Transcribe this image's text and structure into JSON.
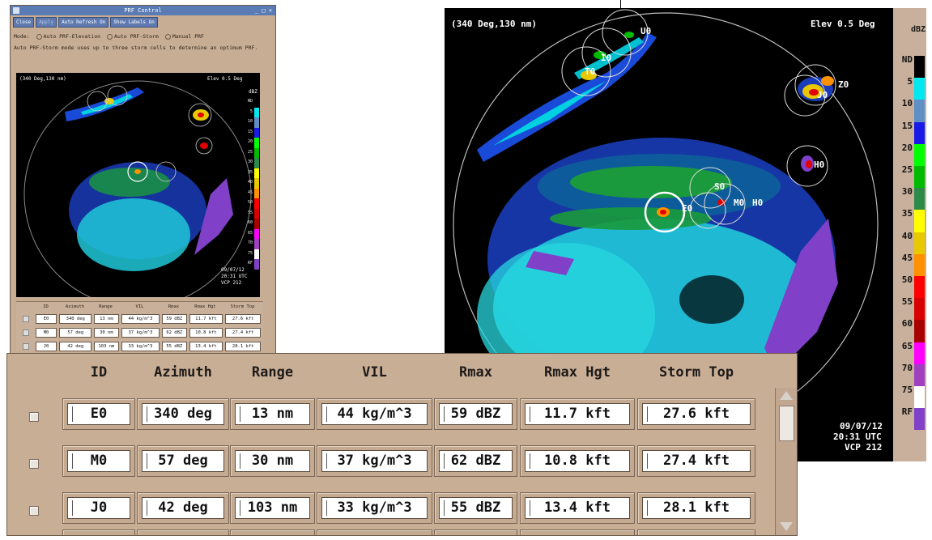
{
  "small_window": {
    "title": "PRF Control",
    "toolbar": {
      "close": "Close",
      "apply": "Apply",
      "auto_refresh": "Auto Refresh  On",
      "show_labels": "Show Labels  On"
    },
    "mode": {
      "label": "Mode:",
      "options": [
        "Auto PRF-Elevation",
        "Auto PRF-Storm",
        "Manual PRF"
      ]
    },
    "description": "Auto PRF-Storm mode uses up to three storm cells to determine an optimum PRF.",
    "radar": {
      "position_label": "(340 Deg,130 nm)",
      "elevation_label": "Elev 0.5 Deg",
      "legend_title": "dBZ",
      "date": "09/07/12",
      "time": "20:31 UTC",
      "vcp": "VCP 212"
    },
    "table": {
      "headers": [
        "ID",
        "Azimuth",
        "Range",
        "VIL",
        "Rmax",
        "Rmax Hgt",
        "Storm Top"
      ],
      "rows": [
        [
          "E0",
          "340 deg",
          "13 nm",
          "44 kg/m^3",
          "59 dBZ",
          "11.7 kft",
          "27.6 kft"
        ],
        [
          "M0",
          "57 deg",
          "30 nm",
          "37 kg/m^3",
          "62 dBZ",
          "10.8 kft",
          "27.4 kft"
        ],
        [
          "J0",
          "42 deg",
          "103 nm",
          "33 kg/m^3",
          "55 dBZ",
          "13.4 kft",
          "28.1 kft"
        ]
      ]
    }
  },
  "big_radar": {
    "position_label": "(340 Deg,130 nm)",
    "elevation_label": "Elev 0.5 Deg",
    "date": "09/07/12",
    "time": "20:31 UTC",
    "vcp": "VCP 212",
    "cell_labels": [
      "U0",
      "I0",
      "T0",
      "Z0",
      "J0",
      "H0",
      "S0",
      "E0",
      "M0",
      "H0"
    ]
  },
  "legend": {
    "title": "dBZ",
    "items": [
      {
        "label": "ND",
        "color": "#000000"
      },
      {
        "label": "5",
        "color": "#00e8f0"
      },
      {
        "label": "10",
        "color": "#5f8fc4"
      },
      {
        "label": "15",
        "color": "#1a1ae8"
      },
      {
        "label": "20",
        "color": "#00ff00"
      },
      {
        "label": "25",
        "color": "#00bb00"
      },
      {
        "label": "30",
        "color": "#2e8a48"
      },
      {
        "label": "35",
        "color": "#ffff00"
      },
      {
        "label": "40",
        "color": "#e8c800"
      },
      {
        "label": "45",
        "color": "#ff9000"
      },
      {
        "label": "50",
        "color": "#ff0000"
      },
      {
        "label": "55",
        "color": "#d80000"
      },
      {
        "label": "60",
        "color": "#a80000"
      },
      {
        "label": "65",
        "color": "#ff00ff"
      },
      {
        "label": "70",
        "color": "#a040c0"
      },
      {
        "label": "75",
        "color": "#ffffff"
      },
      {
        "label": "RF",
        "color": "#8040c8"
      }
    ]
  },
  "big_table": {
    "headers": [
      "ID",
      "Azimuth",
      "Range",
      "VIL",
      "Rmax",
      "Rmax Hgt",
      "Storm Top"
    ],
    "rows": [
      [
        "E0",
        "340 deg",
        "13 nm",
        "44 kg/m^3",
        "59 dBZ",
        "11.7 kft",
        "27.6 kft"
      ],
      [
        "M0",
        "57 deg",
        "30 nm",
        "37 kg/m^3",
        "62 dBZ",
        "10.8 kft",
        "27.4 kft"
      ],
      [
        "J0",
        "42 deg",
        "103 nm",
        "33 kg/m^3",
        "55 dBZ",
        "13.4 kft",
        "28.1 kft"
      ]
    ]
  }
}
